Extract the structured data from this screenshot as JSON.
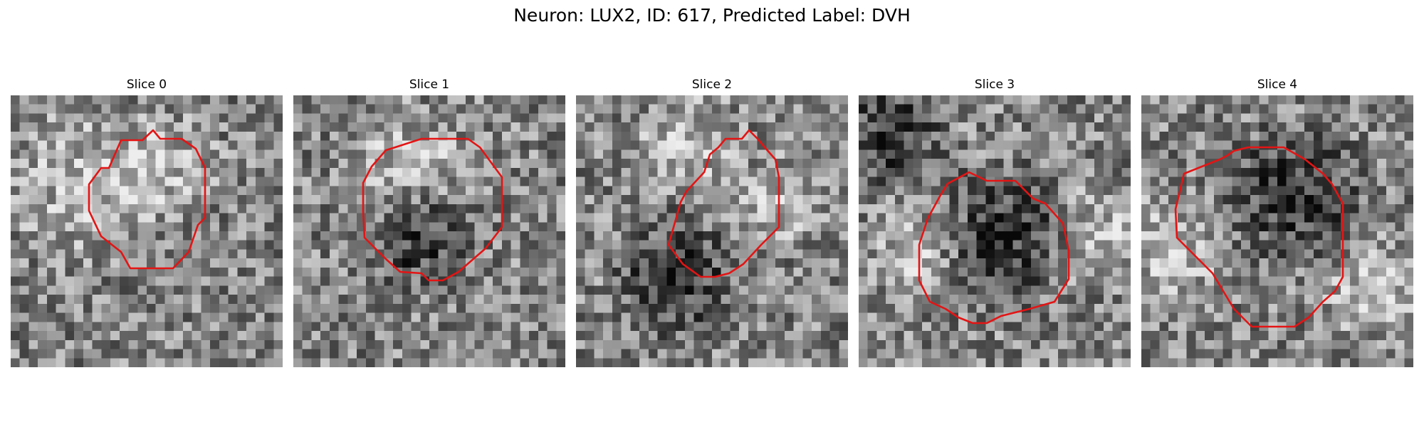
{
  "figure_title": "Neuron: LUX2, ID: 617, Predicted Label: DVH",
  "outline_color": "#e41414",
  "panels": [
    {
      "title": "Slice 0",
      "dark_blobs": [],
      "bright_blobs": [
        [
          0.25,
          0.3,
          0.35
        ],
        [
          0.55,
          0.25,
          0.25
        ]
      ]
    },
    {
      "title": "Slice 1",
      "dark_blobs": [
        [
          0.45,
          0.5,
          0.25
        ]
      ],
      "bright_blobs": [
        [
          0.4,
          0.25,
          0.3
        ]
      ]
    },
    {
      "title": "Slice 2",
      "dark_blobs": [
        [
          0.35,
          0.65,
          0.28
        ]
      ],
      "bright_blobs": [
        [
          0.72,
          0.38,
          0.22
        ],
        [
          0.4,
          0.15,
          0.25
        ]
      ]
    },
    {
      "title": "Slice 3",
      "dark_blobs": [
        [
          0.5,
          0.5,
          0.32
        ],
        [
          0.1,
          0.12,
          0.25
        ]
      ],
      "bright_blobs": [
        [
          0.2,
          0.55,
          0.25
        ],
        [
          0.9,
          0.5,
          0.25
        ]
      ]
    },
    {
      "title": "Slice 4",
      "dark_blobs": [
        [
          0.55,
          0.35,
          0.32
        ]
      ],
      "bright_blobs": [
        [
          0.1,
          0.55,
          0.25
        ],
        [
          0.85,
          0.7,
          0.25
        ]
      ]
    }
  ]
}
